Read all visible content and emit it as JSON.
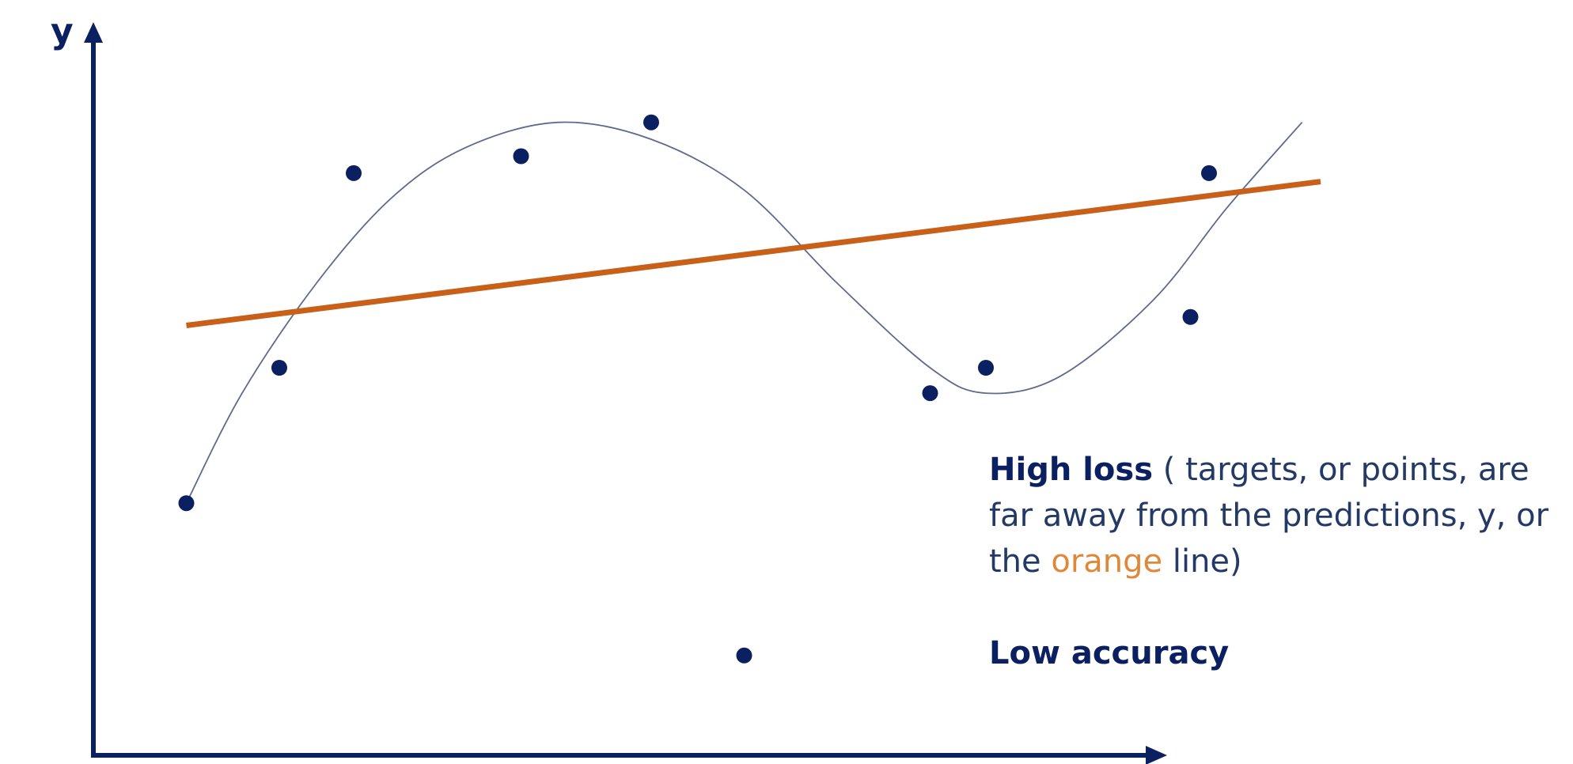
{
  "chart_data": {
    "type": "scatter",
    "xlabel": "",
    "ylabel": "y",
    "grid": false,
    "xlim": [
      0,
      10
    ],
    "ylim": [
      0,
      10
    ],
    "points": [
      {
        "x": 0.5,
        "y": 3.4
      },
      {
        "x": 1.0,
        "y": 5.0
      },
      {
        "x": 1.4,
        "y": 7.3
      },
      {
        "x": 2.3,
        "y": 7.5
      },
      {
        "x": 3.0,
        "y": 7.9
      },
      {
        "x": 3.5,
        "y": 1.6
      },
      {
        "x": 4.5,
        "y": 4.7
      },
      {
        "x": 4.8,
        "y": 5.0
      },
      {
        "x": 5.9,
        "y": 5.6
      },
      {
        "x": 6.0,
        "y": 7.3
      }
    ],
    "linear_fit": {
      "x0": 0.5,
      "y0": 5.5,
      "x1": 6.6,
      "y1": 7.2,
      "color": "#c8601a"
    },
    "curve_fit": {
      "color": "#5d6b8e",
      "points": [
        [
          0.5,
          3.4
        ],
        [
          0.8,
          4.7
        ],
        [
          1.2,
          6.0
        ],
        [
          1.6,
          7.0
        ],
        [
          2.0,
          7.6
        ],
        [
          2.5,
          7.9
        ],
        [
          3.0,
          7.7
        ],
        [
          3.5,
          7.1
        ],
        [
          4.0,
          6.0
        ],
        [
          4.5,
          5.0
        ],
        [
          4.8,
          4.7
        ],
        [
          5.2,
          4.9
        ],
        [
          5.7,
          5.8
        ],
        [
          6.1,
          6.9
        ],
        [
          6.5,
          7.9
        ]
      ]
    }
  },
  "annotation": {
    "high_loss": "High loss",
    "explanation_a": " ( targets, or points, are far away from the predictions, y, or the ",
    "orange_word": "orange",
    "explanation_b": " line)",
    "low_accuracy": "Low accuracy"
  }
}
